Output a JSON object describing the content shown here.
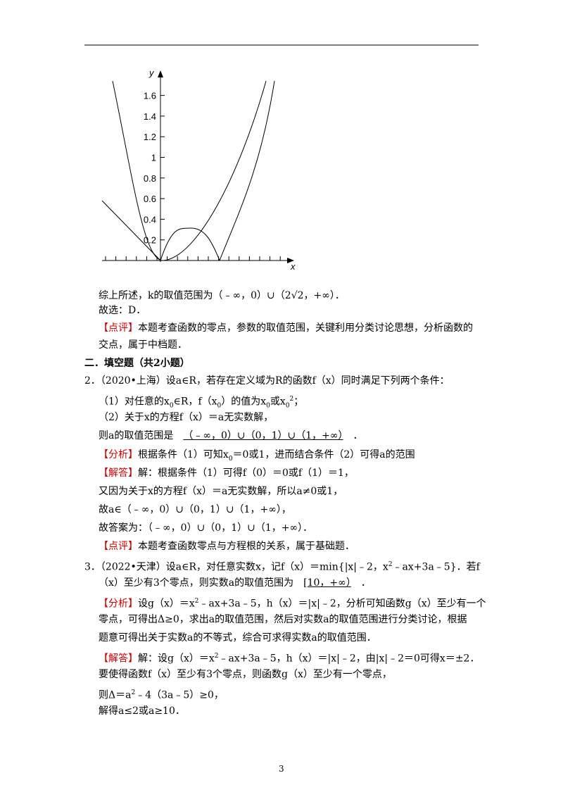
{
  "figure": {
    "x_label": "x",
    "y_label": "y",
    "y_tick_labels": [
      "0.2",
      "0.4",
      "0.6",
      "0.8",
      "1",
      "1.2",
      "1.4",
      "1.6"
    ]
  },
  "lines": [
    "综上所述，k的取值范围为（﹣∞，0）∪（2√2，+∞）．",
    "故选：D．",
    [
      "【点评】",
      "本题考查函数的零点，参数的取值范围，关键利用分类讨论思想，分析函数的"
    ],
    "交点，属于中档题．",
    "二．填空题（共2小题）",
    "2．（2020•上海）设a∈R，若存在定义域为R的函数f（x）同时满足下列两个条件：",
    [
      "（1）对任意的x",
      "0",
      "∈R，f（x",
      "0",
      "）的值为x",
      "0",
      "或x",
      "0",
      "2",
      "；"
    ],
    "（2）关于x的方程f（x）＝a无实数解，",
    [
      "则a的取值范围是",
      "（﹣∞，0）∪（0，1）∪（1，+∞）",
      "．"
    ],
    [
      "【分析】",
      "根据条件（1）可知x",
      "0",
      "＝0或1，进而结合条件（2）可得a的范围"
    ],
    [
      "【解答】",
      "解：根据条件（1）可得f（0）＝0或f（1）＝1，"
    ],
    "又因为关于x的方程f（x）＝a无实数解，所以a≠0或1，",
    "故a∈（﹣∞，0）∪（0，1）∪（1，+∞），",
    "故答案为：（﹣∞，0）∪（0，1）∪（1，+∞）．",
    [
      "【点评】",
      "本题考查函数零点与方程根的关系，属于基础题．"
    ],
    [
      "3．（2022•天津）设a∈R，对任意实数x，记f（x）＝min{|x|﹣2，x",
      "2",
      "﹣ax+3a﹣5}．若f"
    ],
    [
      "（x）至少有3个零点，则实数a的取值范围为",
      "[10，+∞）",
      "．"
    ],
    [
      "【分析】",
      "设g（x）＝x",
      "2",
      "﹣ax+3a﹣5，h（x）＝|x|﹣2，分析可知函数g（x）至少有一个"
    ],
    "零点，可得出Δ≥0，求出a的取值范围，然后对实数a的取值范围进行分类讨论，根据",
    "题意可得出关于实数a的不等式，综合可求得实数a的取值范围．",
    [
      "【解答】",
      "解：设g（x）＝x",
      "2",
      "﹣ax+3a﹣5，h（x）＝|x|﹣2，由|x|﹣2＝0可得x＝±2．"
    ],
    "要使得函数f（x）至少有3个零点，则函数g（x）至少有一个零点，",
    [
      "则Δ＝a",
      "2",
      "﹣4（3a﹣5）≥0，"
    ],
    "解得a≤2或a≥10．"
  ],
  "page_number": "3"
}
